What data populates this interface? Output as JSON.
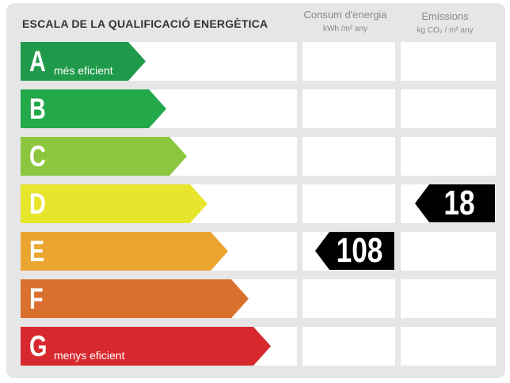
{
  "title": "ESCALA DE LA QUALIFICACIÓ ENERGÈTICA",
  "columns": {
    "consumption": {
      "label": "Consum d'energia",
      "unit": "kWh /m² any"
    },
    "emissions": {
      "label": "Emissions",
      "unit": "kg CO₂ / m² any"
    }
  },
  "ratings": [
    {
      "letter": "A",
      "caption": "més eficient",
      "color": "#1f9a4a"
    },
    {
      "letter": "B",
      "caption": "",
      "color": "#23a84a"
    },
    {
      "letter": "C",
      "caption": "",
      "color": "#8cc63f"
    },
    {
      "letter": "D",
      "caption": "",
      "color": "#e7e52c"
    },
    {
      "letter": "E",
      "caption": "",
      "color": "#eaa530"
    },
    {
      "letter": "F",
      "caption": "",
      "color": "#d9702e"
    },
    {
      "letter": "G",
      "caption": "menys eficient",
      "color": "#d7282e"
    }
  ],
  "consumption_value": {
    "value": "108",
    "rating": "E"
  },
  "emissions_value": {
    "value": "18",
    "rating": "D"
  }
}
